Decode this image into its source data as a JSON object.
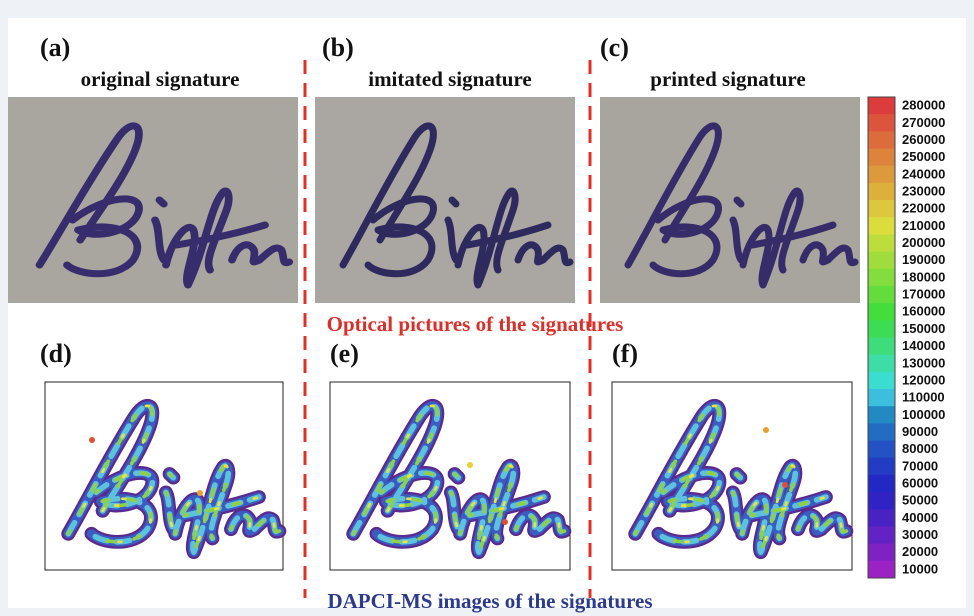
{
  "panels": [
    {
      "label": "(a)",
      "caption": "original signature"
    },
    {
      "label": "(b)",
      "caption": "imitated signature"
    },
    {
      "label": "(c)",
      "caption": "printed signature"
    },
    {
      "label": "(d)"
    },
    {
      "label": "(e)"
    },
    {
      "label": "(f)"
    }
  ],
  "optical_caption": "Optical pictures of the signatures",
  "ms_caption": "DAPCI-MS images of the signatures",
  "colorbar": {
    "labels": [
      280000,
      270000,
      260000,
      250000,
      240000,
      230000,
      220000,
      210000,
      200000,
      190000,
      180000,
      170000,
      160000,
      150000,
      140000,
      130000,
      120000,
      110000,
      100000,
      90000,
      80000,
      70000,
      60000,
      50000,
      40000,
      30000,
      20000,
      10000
    ]
  }
}
